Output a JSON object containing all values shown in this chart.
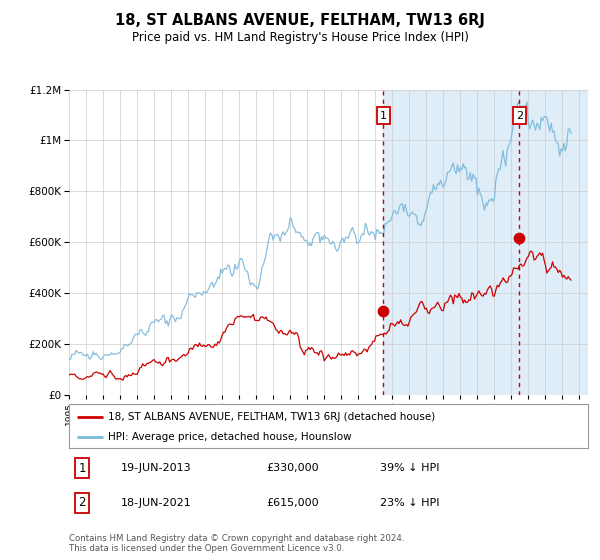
{
  "title": "18, ST ALBANS AVENUE, FELTHAM, TW13 6RJ",
  "subtitle": "Price paid vs. HM Land Registry's House Price Index (HPI)",
  "legend_line1": "18, ST ALBANS AVENUE, FELTHAM, TW13 6RJ (detached house)",
  "legend_line2": "HPI: Average price, detached house, Hounslow",
  "annotation1_label": "1",
  "annotation1_date": "19-JUN-2013",
  "annotation1_price": "£330,000",
  "annotation1_hpi": "39% ↓ HPI",
  "annotation2_label": "2",
  "annotation2_date": "18-JUN-2021",
  "annotation2_price": "£615,000",
  "annotation2_hpi": "23% ↓ HPI",
  "event1_year": 2013.47,
  "event1_value_red": 330000,
  "event2_year": 2021.47,
  "event2_value_red": 615000,
  "ylim": [
    0,
    1200000
  ],
  "xlim_start": 1995,
  "xlim_end": 2025.5,
  "shaded_start": 2013.47,
  "hpi_color": "#7ab8d9",
  "red_color": "#cc0000",
  "shade_color": "#deedf7",
  "grid_color": "#cccccc",
  "background_color": "#ffffff",
  "footer_text": "Contains HM Land Registry data © Crown copyright and database right 2024.\nThis data is licensed under the Open Government Licence v3.0."
}
